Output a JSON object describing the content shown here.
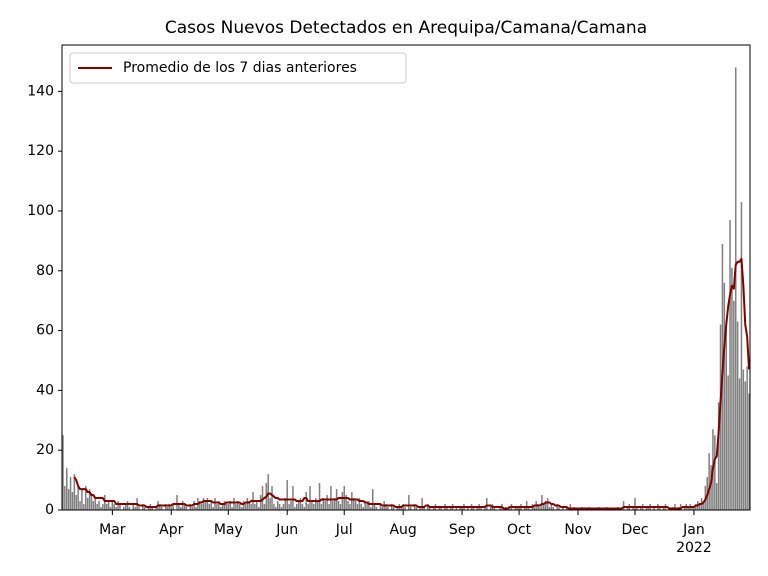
{
  "chart_data": {
    "type": "bar",
    "title": "Casos Nuevos Detectados en Arequipa/Camana/Camana",
    "x": [
      0,
      1,
      2,
      3,
      4,
      5,
      6,
      7,
      8,
      9,
      10,
      11,
      12,
      13,
      14,
      15,
      16,
      17,
      18,
      19,
      20,
      21,
      22,
      23,
      24,
      25,
      26,
      27,
      28,
      29,
      30,
      31,
      32,
      33,
      34,
      35,
      36,
      37,
      38,
      39,
      40,
      41,
      42,
      43,
      44,
      45,
      46,
      47,
      48,
      49,
      50,
      51,
      52,
      53,
      54,
      55,
      56,
      57,
      58,
      59,
      60,
      61,
      62,
      63,
      64,
      65,
      66,
      67,
      68,
      69,
      70,
      71,
      72,
      73,
      74,
      75,
      76,
      77,
      78,
      79,
      80,
      81,
      82,
      83,
      84,
      85,
      86,
      87,
      88,
      89,
      90,
      91,
      92,
      93,
      94,
      95,
      96,
      97,
      98,
      99,
      100,
      101,
      102,
      103,
      104,
      105,
      106,
      107,
      108,
      109,
      110,
      111,
      112,
      113,
      114,
      115,
      116,
      117,
      118,
      119,
      120,
      121,
      122,
      123,
      124,
      125,
      126,
      127,
      128,
      129,
      130,
      131,
      132,
      133,
      134,
      135,
      136,
      137,
      138,
      139,
      140,
      141,
      142,
      143,
      144,
      145,
      146,
      147,
      148,
      149,
      150,
      151,
      152,
      153,
      154,
      155,
      156,
      157,
      158,
      159,
      160,
      161,
      162,
      163,
      164,
      165,
      166,
      167,
      168,
      169,
      170,
      171,
      172,
      173,
      174,
      175,
      176,
      177,
      178,
      179,
      180,
      181,
      182,
      183,
      184,
      185,
      186,
      187,
      188,
      189,
      190,
      191,
      192,
      193,
      194,
      195,
      196,
      197,
      198,
      199,
      200,
      201,
      202,
      203,
      204,
      205,
      206,
      207,
      208,
      209,
      210,
      211,
      212,
      213,
      214,
      215,
      216,
      217,
      218,
      219,
      220,
      221,
      222,
      223,
      224,
      225,
      226,
      227,
      228,
      229,
      230,
      231,
      232,
      233,
      234,
      235,
      236,
      237,
      238,
      239,
      240,
      241,
      242,
      243,
      244,
      245,
      246,
      247,
      248,
      249,
      250,
      251,
      252,
      253,
      254,
      255,
      256,
      257,
      258,
      259,
      260,
      261,
      262,
      263,
      264,
      265,
      266,
      267,
      268,
      269,
      270,
      271,
      272,
      273,
      274,
      275,
      276,
      277,
      278,
      279,
      280,
      281,
      282,
      283,
      284,
      285,
      286,
      287,
      288,
      289,
      290,
      291,
      292,
      293,
      294,
      295,
      296,
      297,
      298,
      299,
      300,
      301,
      302,
      303,
      304,
      305,
      306,
      307,
      308,
      309,
      310,
      311,
      312,
      313,
      314,
      315,
      316,
      317,
      318,
      319,
      320,
      321,
      322,
      323,
      324,
      325,
      326,
      327,
      328,
      329,
      330,
      331,
      332,
      333,
      334,
      335,
      336,
      337,
      338,
      339,
      340,
      341,
      342,
      343,
      344,
      345,
      346,
      347,
      348,
      349,
      350,
      351,
      352,
      353,
      354,
      355,
      356,
      357,
      358,
      359,
      360,
      361
    ],
    "series": [
      {
        "type": "bar",
        "color": "#808080",
        "values": [
          25,
          8,
          14,
          7,
          11,
          6,
          12,
          5,
          8,
          3,
          7,
          2,
          8,
          4,
          7,
          5,
          3,
          4,
          2,
          3,
          1,
          2,
          5,
          2,
          3,
          1,
          3,
          2,
          1,
          3,
          2,
          0,
          1,
          2,
          3,
          1,
          0,
          2,
          1,
          4,
          1,
          0,
          2,
          1,
          0,
          1,
          2,
          1,
          0,
          1,
          3,
          2,
          1,
          0,
          2,
          1,
          2,
          1,
          2,
          0,
          5,
          2,
          1,
          3,
          2,
          1,
          0,
          2,
          1,
          3,
          1,
          4,
          3,
          2,
          4,
          3,
          4,
          2,
          3,
          1,
          4,
          2,
          3,
          1,
          2,
          3,
          2,
          2,
          3,
          1,
          4,
          2,
          3,
          2,
          1,
          3,
          2,
          4,
          3,
          2,
          6,
          2,
          3,
          1,
          5,
          8,
          2,
          9,
          12,
          4,
          8,
          2,
          1,
          3,
          2,
          1,
          2,
          4,
          10,
          2,
          3,
          8,
          1,
          2,
          3,
          4,
          2,
          1,
          6,
          2,
          8,
          3,
          2,
          4,
          3,
          9,
          2,
          4,
          3,
          5,
          2,
          8,
          3,
          4,
          7,
          3,
          2,
          6,
          8,
          5,
          3,
          2,
          6,
          4,
          3,
          2,
          4,
          2,
          1,
          3,
          2,
          3,
          1,
          7,
          2,
          1,
          0,
          2,
          1,
          3,
          2,
          1,
          0,
          2,
          1,
          0,
          1,
          2,
          1,
          2,
          1,
          0,
          5,
          1,
          0,
          2,
          1,
          0,
          1,
          4,
          1,
          0,
          2,
          1,
          0,
          1,
          2,
          0,
          1,
          1,
          0,
          2,
          1,
          0,
          1,
          2,
          0,
          1,
          0,
          1,
          1,
          2,
          0,
          1,
          0,
          2,
          1,
          0,
          1,
          2,
          1,
          0,
          1,
          4,
          0,
          1,
          2,
          1,
          0,
          0,
          1,
          2,
          0,
          1,
          0,
          1,
          2,
          0,
          1,
          1,
          1,
          2,
          0,
          1,
          3,
          1,
          0,
          2,
          1,
          3,
          2,
          1,
          5,
          2,
          3,
          4,
          1,
          2,
          1,
          0,
          2,
          1,
          0,
          1,
          0,
          1,
          0,
          2,
          0,
          1,
          0,
          0,
          0,
          1,
          0,
          0,
          0,
          1,
          0,
          0,
          0,
          0,
          1,
          0,
          0,
          0,
          1,
          0,
          0,
          0,
          0,
          0,
          1,
          0,
          0,
          3,
          0,
          1,
          2,
          0,
          1,
          4,
          1,
          0,
          1,
          2,
          0,
          1,
          1,
          2,
          0,
          1,
          0,
          2,
          1,
          0,
          1,
          2,
          0,
          0,
          0,
          1,
          2,
          0,
          1,
          2,
          0,
          1,
          2,
          1,
          2,
          1,
          1,
          2,
          3,
          2,
          4,
          3,
          8,
          11,
          19,
          15,
          27,
          25,
          9,
          36,
          62,
          89,
          76,
          63,
          45,
          97,
          81,
          70,
          148,
          63,
          44,
          103,
          47,
          43,
          48,
          39
        ]
      },
      {
        "type": "line",
        "name": "Promedio de los 7 dias anteriores",
        "color": "#800000",
        "values": [
          null,
          null,
          null,
          null,
          null,
          null,
          11,
          10,
          8,
          7,
          7,
          7,
          7,
          6,
          6,
          5,
          5,
          4,
          4,
          4,
          4,
          4,
          3,
          3,
          3,
          3,
          3,
          3,
          2,
          2,
          2,
          2,
          2,
          2,
          2,
          2,
          2,
          2,
          2,
          2,
          1.5,
          1.5,
          1.5,
          1.5,
          1,
          1,
          1,
          1,
          1,
          1,
          1.5,
          1.5,
          1.5,
          1.5,
          1.5,
          1.5,
          1.5,
          1.5,
          2,
          2,
          2,
          2,
          2,
          2,
          2,
          1.5,
          1.5,
          1.5,
          1.5,
          2,
          2,
          2,
          2.5,
          2.5,
          3,
          3,
          3,
          3,
          3,
          2.5,
          2.5,
          2.5,
          2.5,
          2,
          2,
          2,
          2.5,
          2.5,
          2.5,
          2.5,
          2.5,
          2.5,
          2.5,
          2.5,
          2,
          2,
          2.5,
          2.5,
          2.5,
          3,
          3,
          3,
          3,
          3,
          3,
          3.5,
          4,
          4.5,
          5.5,
          5.5,
          5,
          4.5,
          4,
          4,
          3.5,
          3.5,
          3.5,
          3.5,
          3.5,
          3.5,
          3.5,
          3.5,
          3.5,
          3,
          3,
          3,
          3,
          4,
          4,
          3,
          3,
          3,
          3,
          3,
          3,
          3,
          3.5,
          3.5,
          3.5,
          3.5,
          3.5,
          3.5,
          3.5,
          3.5,
          3.5,
          4,
          4,
          4,
          4,
          4,
          4,
          3.5,
          3.5,
          3.5,
          3.5,
          3.5,
          3,
          3,
          3,
          2.5,
          2.5,
          2,
          2,
          2,
          2,
          2,
          2,
          2,
          1.5,
          1.5,
          1.5,
          1.5,
          1.5,
          1.5,
          1.5,
          1,
          1,
          1,
          1,
          1.5,
          1.5,
          1.5,
          1.5,
          1.5,
          1.5,
          1.5,
          1.5,
          1,
          1,
          1,
          1,
          1.5,
          1.5,
          1,
          1,
          1,
          1,
          1,
          1,
          1,
          1,
          1,
          1,
          1,
          1,
          1,
          1,
          1,
          1,
          1,
          1,
          1,
          1,
          1,
          1,
          1,
          1,
          1,
          1,
          1,
          1,
          1,
          1,
          1.5,
          1.5,
          1.5,
          1,
          1,
          1,
          1,
          1,
          1,
          0.5,
          0.5,
          0.5,
          1,
          1,
          1,
          1,
          1,
          1,
          1,
          1,
          1,
          1,
          1,
          1,
          1,
          1.5,
          1.5,
          1.5,
          1.5,
          2,
          2,
          2.5,
          2.5,
          2.5,
          2,
          2,
          1.5,
          1.5,
          1.5,
          1,
          1,
          1,
          1,
          0.5,
          0.5,
          0.5,
          0.5,
          0.5,
          0.5,
          0.5,
          0.5,
          0.5,
          0.5,
          0.5,
          0.5,
          0.5,
          0.5,
          0.5,
          0.5,
          0.5,
          0.5,
          0.5,
          0.5,
          0.5,
          0.5,
          0.5,
          0.5,
          0.5,
          0.5,
          0.5,
          0.5,
          0.5,
          1,
          1,
          1,
          1,
          1,
          1,
          1,
          1,
          1,
          1,
          1,
          1,
          1,
          1,
          1,
          1,
          1,
          1,
          1,
          1,
          1,
          1,
          1,
          1,
          0.5,
          0.5,
          0.5,
          0.5,
          0.5,
          0.5,
          0.5,
          1,
          1,
          1,
          1,
          1,
          1,
          1,
          1.5,
          1.5,
          2,
          2,
          2.5,
          3.5,
          5,
          7,
          9,
          14,
          17,
          18,
          26,
          36,
          46,
          55,
          62,
          68,
          72,
          75,
          74,
          82,
          83,
          83,
          84,
          75,
          62,
          58,
          47
        ]
      }
    ],
    "xlim": [
      -0.5,
      361.5
    ],
    "xticks": [
      {
        "value": 26,
        "label": "Mar"
      },
      {
        "value": 57,
        "label": "Apr"
      },
      {
        "value": 87,
        "label": "May"
      },
      {
        "value": 118,
        "label": "Jun"
      },
      {
        "value": 148,
        "label": "Jul"
      },
      {
        "value": 179,
        "label": "Aug"
      },
      {
        "value": 210,
        "label": "Sep"
      },
      {
        "value": 240,
        "label": "Oct"
      },
      {
        "value": 271,
        "label": "Nov"
      },
      {
        "value": 301,
        "label": "Dec"
      },
      {
        "value": 332,
        "label": "Jan\n2022"
      }
    ],
    "ylim": [
      0,
      155.5
    ],
    "yticks": [
      0,
      20,
      40,
      60,
      80,
      100,
      120,
      140
    ],
    "legend": "upper left"
  }
}
